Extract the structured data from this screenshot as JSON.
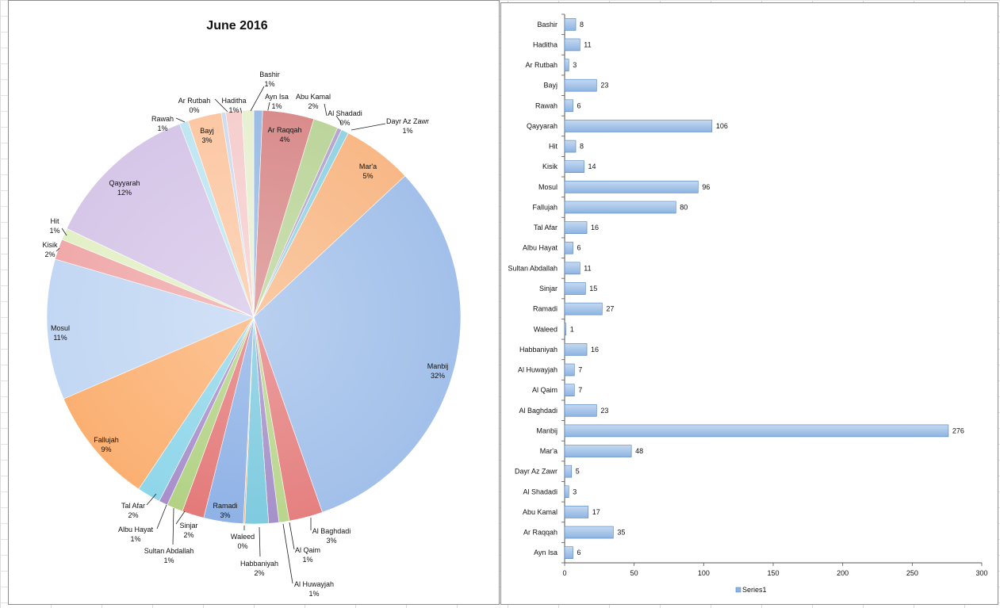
{
  "colors": {
    "bar_fill": "#8db3e2",
    "bar_stroke": "#4f81bd",
    "axis": "#555555",
    "leader": "#222222"
  },
  "chart_data": [
    {
      "type": "pie",
      "title": "June 2016",
      "categories": [
        "Ayn Isa",
        "Ar Raqqah",
        "Abu Kamal",
        "Al Shadadi",
        "Dayr Az Zawr",
        "Mar'a",
        "Manbij",
        "Al Baghdadi",
        "Al Qaim",
        "Al Huwayjah",
        "Habbaniyah",
        "Waleed",
        "Ramadi",
        "Sinjar",
        "Sultan Abdallah",
        "Albu Hayat",
        "Tal Afar",
        "Fallujah",
        "Mosul",
        "Kisik",
        "Hit",
        "Qayyarah",
        "Rawah",
        "Bayj",
        "Ar Rutbah",
        "Haditha",
        "Bashir"
      ],
      "values": [
        6,
        35,
        17,
        3,
        5,
        48,
        276,
        23,
        7,
        7,
        16,
        1,
        27,
        15,
        11,
        6,
        16,
        80,
        96,
        14,
        8,
        106,
        6,
        23,
        3,
        11,
        8
      ],
      "percent_labels": [
        "1%",
        "4%",
        "2%",
        "0%",
        "1%",
        "5%",
        "32%",
        "3%",
        "1%",
        "1%",
        "2%",
        "0%",
        "3%",
        "2%",
        "1%",
        "1%",
        "2%",
        "9%",
        "11%",
        "2%",
        "1%",
        "12%",
        "1%",
        "3%",
        "0%",
        "1%",
        "1%"
      ]
    },
    {
      "type": "bar",
      "orientation": "horizontal",
      "categories": [
        "Bashir",
        "Haditha",
        "Ar Rutbah",
        "Bayj",
        "Rawah",
        "Qayyarah",
        "Hit",
        "Kisik",
        "Mosul",
        "Fallujah",
        "Tal Afar",
        "Albu Hayat",
        "Sultan Abdallah",
        "Sinjar",
        "Ramadi",
        "Waleed",
        "Habbaniyah",
        "Al Huwayjah",
        "Al Qaim",
        "Al Baghdadi",
        "Manbij",
        "Mar'a",
        "Dayr Az Zawr",
        "Al Shadadi",
        "Abu Kamal",
        "Ar Raqqah",
        "Ayn Isa"
      ],
      "series": [
        {
          "name": "Series1",
          "values": [
            8,
            11,
            3,
            23,
            6,
            106,
            8,
            14,
            96,
            80,
            16,
            6,
            11,
            15,
            27,
            1,
            16,
            7,
            7,
            23,
            276,
            48,
            5,
            3,
            17,
            35,
            6
          ]
        }
      ],
      "xlim": [
        0,
        300
      ],
      "xticks": [
        "0",
        "50",
        "100",
        "150",
        "200",
        "250",
        "300"
      ],
      "legend": "bottom"
    }
  ]
}
